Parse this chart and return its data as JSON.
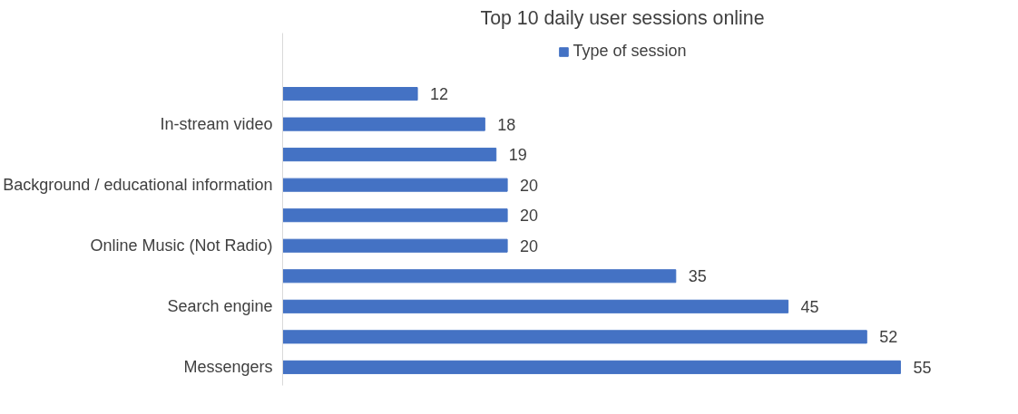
{
  "chart_data": {
    "type": "bar",
    "orientation": "horizontal",
    "title": "Top 10 daily user sessions online",
    "categories": [
      null,
      "In-stream video",
      null,
      "Background / educational information",
      null,
      "Online Music (Not Radio)",
      null,
      "Search engine",
      null,
      "Messengers"
    ],
    "series": [
      {
        "name": "Type of session",
        "color": "#4472c4",
        "values": [
          12,
          18,
          19,
          20,
          20,
          20,
          35,
          45,
          52,
          55
        ]
      }
    ],
    "data_labels": true,
    "legend": "top"
  }
}
